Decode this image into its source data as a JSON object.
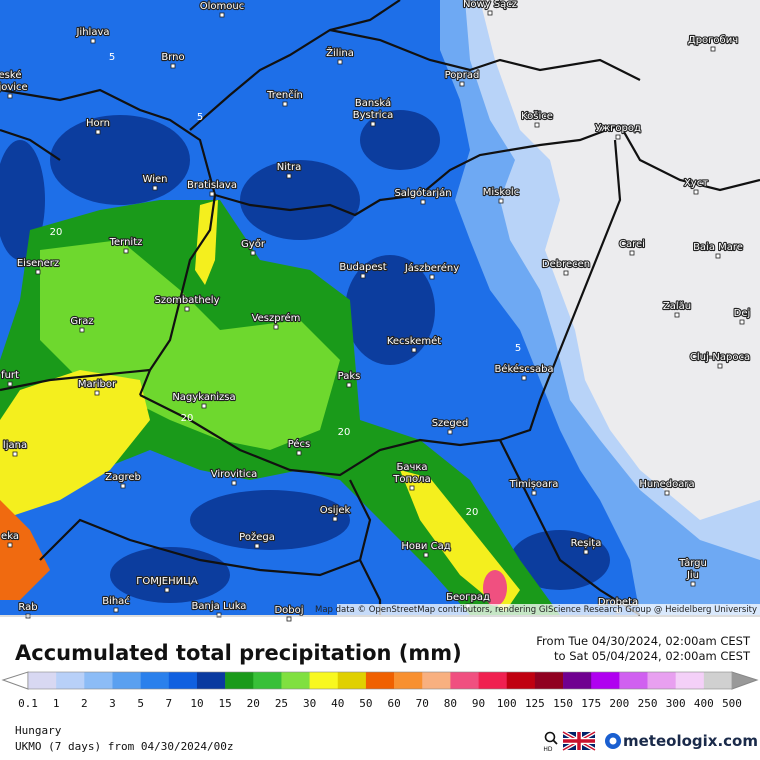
{
  "map": {
    "cities": [
      [
        "Olomouc"
      ],
      [
        "Nowy Sącz"
      ],
      [
        "Jihlava"
      ],
      [
        "Brno"
      ],
      [
        "Žilina"
      ],
      [
        "Дрогобич"
      ],
      [
        "Poprad"
      ],
      [
        "eské",
        "ějovice"
      ],
      [
        "Trenčín"
      ],
      [
        "Banská",
        "Bystrica"
      ],
      [
        "Košice"
      ],
      [
        "Ужгород"
      ],
      [
        "Horn"
      ],
      [
        "Nitra"
      ],
      [
        "Wien"
      ],
      [
        "Bratislava"
      ],
      [
        "Salgótarján"
      ],
      [
        "Miskolc"
      ],
      [
        "Хуст"
      ],
      [
        "Ternitz"
      ],
      [
        "Győr"
      ],
      [
        "Carei"
      ],
      [
        "Baia Mare"
      ],
      [
        "Eisenerz"
      ],
      [
        "Budapest"
      ],
      [
        "Jászberény"
      ],
      [
        "Debrecen"
      ],
      [
        "Szombathely"
      ],
      [
        "Zalău"
      ],
      [
        "Dej"
      ],
      [
        "Graz"
      ],
      [
        "Veszprém"
      ],
      [
        "Kecskemét"
      ],
      [
        "Cluj-Napoca"
      ],
      [
        "furt"
      ],
      [
        "Paks"
      ],
      [
        "Békéscsaba"
      ],
      [
        "Maribor"
      ],
      [
        "Nagykanizsa"
      ],
      [
        "Szeged"
      ],
      [
        "ljana"
      ],
      [
        "Pécs"
      ],
      [
        "Бачка",
        "Топола"
      ],
      [
        "Zagreb"
      ],
      [
        "Virovitica"
      ],
      [
        "Timișoara"
      ],
      [
        "Hunedoara"
      ],
      [
        "Osijek"
      ],
      [
        "eka"
      ],
      [
        "Požega"
      ],
      [
        "Нови Сад"
      ],
      [
        "Reșița"
      ],
      [
        "Târgu",
        "Jiu"
      ],
      [
        "ГОМЈЕНИЦА"
      ],
      [
        "Београд"
      ],
      [
        "Bihać"
      ],
      [
        "Banja Luka"
      ],
      [
        "Doboj"
      ],
      [
        "Rab"
      ],
      [
        "Drobeta"
      ]
    ],
    "contours": [
      "5",
      "5",
      "20",
      "20",
      "20",
      "5",
      "20"
    ],
    "attribution": "Map data © OpenStreetMap contributors, rendering GIScience Research Group @ Heidelberg University"
  },
  "footer": {
    "title": "Accumulated total precipitation (mm)",
    "period": [
      "From Tue 04/30/2024, 02:00am CEST",
      "to Sat 05/04/2024, 02:00am CEST"
    ],
    "legend": {
      "labels": [
        "0.1",
        "1",
        "2",
        "3",
        "5",
        "7",
        "10",
        "15",
        "20",
        "25",
        "30",
        "40",
        "50",
        "60",
        "70",
        "80",
        "90",
        "100",
        "125",
        "150",
        "175",
        "200",
        "250",
        "300",
        "400",
        "500"
      ],
      "colors": [
        "#d8d8f2",
        "#b8d0f8",
        "#8cbcf6",
        "#5aa0f0",
        "#2a80ec",
        "#1060e0",
        "#0a3aa0",
        "#1a9a1a",
        "#38c038",
        "#80e040",
        "#f8f820",
        "#e0d000",
        "#f06000",
        "#f89030",
        "#f8b080",
        "#f05080",
        "#f02050",
        "#c00010",
        "#900020",
        "#700090",
        "#b000f0",
        "#d060f0",
        "#e8a0f0",
        "#f4d0f8",
        "#d0d0d0"
      ]
    },
    "region": "Hungary",
    "model": "UKMO (7 days) from 04/30/2024/00z",
    "hd": "HD",
    "brand": "meteologix.com"
  }
}
